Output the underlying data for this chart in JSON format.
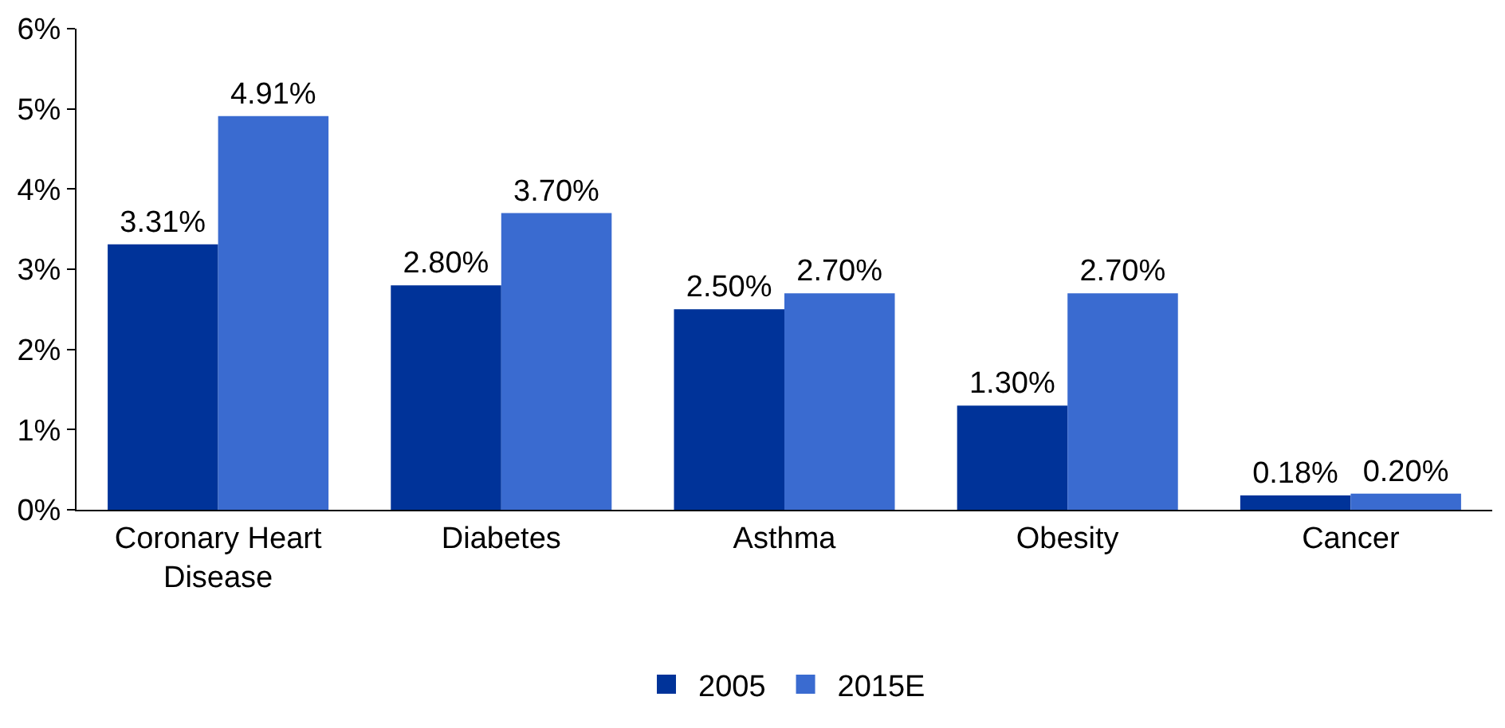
{
  "chart_data": {
    "type": "bar",
    "categories": [
      "Coronary Heart Disease",
      "Diabetes",
      "Asthma",
      "Obesity",
      "Cancer"
    ],
    "series": [
      {
        "name": "2005",
        "color": "#003399",
        "values": [
          3.31,
          2.8,
          2.5,
          1.3,
          0.18
        ],
        "value_labels": [
          "3.31%",
          "2.80%",
          "2.50%",
          "1.30%",
          "0.18%"
        ]
      },
      {
        "name": "2015E",
        "color": "#3a6bd0",
        "values": [
          4.91,
          3.7,
          2.7,
          2.7,
          0.2
        ],
        "value_labels": [
          "4.91%",
          "3.70%",
          "2.70%",
          "2.70%",
          "0.20%"
        ]
      }
    ],
    "ylim": [
      0,
      6
    ],
    "yticks": [
      {
        "value": 0,
        "label": "0%"
      },
      {
        "value": 1,
        "label": "1%"
      },
      {
        "value": 2,
        "label": "2%"
      },
      {
        "value": 3,
        "label": "3%"
      },
      {
        "value": 4,
        "label": "4%"
      },
      {
        "value": 5,
        "label": "5%"
      },
      {
        "value": 6,
        "label": "6%"
      }
    ],
    "grid": false,
    "legend": "bottom"
  }
}
